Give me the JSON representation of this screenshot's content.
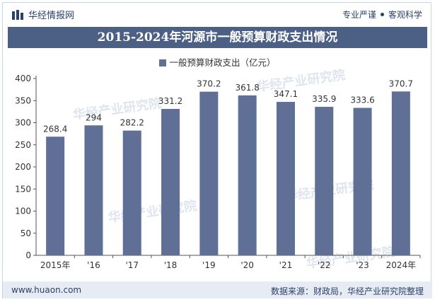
{
  "header": {
    "brand": "华经情报网",
    "tag_left": "专业严谨",
    "tag_right": "客观科学"
  },
  "footer": {
    "website": "www.huaon.com",
    "source": "数据来源：财政局，华经产业研究院整理"
  },
  "watermark": "华经产业研究院",
  "colors": {
    "bar": "#5f6f96",
    "title_bg": "#4c5f85",
    "footer_bg": "#e6ebf4"
  },
  "chart_data": {
    "type": "bar",
    "title": "2015-2024年河源市一般预算财政支出情况",
    "categories": [
      "2015年",
      "'16",
      "'17",
      "'18",
      "'19",
      "'20",
      "'21",
      "'22",
      "'23",
      "2024年"
    ],
    "series": [
      {
        "name": "一般预算财政支出（亿元）",
        "values": [
          268.4,
          294,
          282.2,
          331.2,
          370.2,
          361.8,
          347.1,
          335.9,
          333.6,
          370.7
        ]
      }
    ],
    "value_labels": [
      "268.4",
      "294",
      "282.2",
      "331.2",
      "370.2",
      "361.8",
      "347.1",
      "335.9",
      "333.6",
      "370.7"
    ],
    "ylim": [
      0,
      400
    ],
    "yticks": [
      0,
      50,
      100,
      150,
      200,
      250,
      300,
      350,
      400
    ],
    "legend_position": "top-center",
    "grid": false
  }
}
